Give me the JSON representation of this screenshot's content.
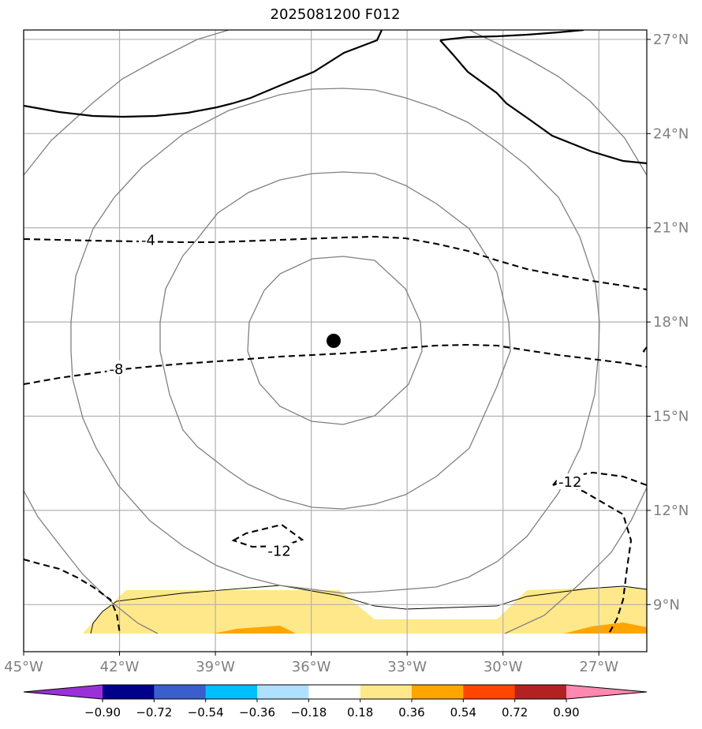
{
  "title": "2025081200 F012",
  "map": {
    "lon_range": [
      -45,
      -25.5
    ],
    "lat_range": [
      7.5,
      27.3
    ],
    "lon_ticks": [
      {
        "value": -45,
        "label": "45°W"
      },
      {
        "value": -42,
        "label": "42°W"
      },
      {
        "value": -39,
        "label": "39°W"
      },
      {
        "value": -36,
        "label": "36°W"
      },
      {
        "value": -33,
        "label": "33°W"
      },
      {
        "value": -30,
        "label": "30°W"
      },
      {
        "value": -27,
        "label": "27°W"
      }
    ],
    "lat_ticks": [
      {
        "value": 27,
        "label": "27°N"
      },
      {
        "value": 24,
        "label": "24°N"
      },
      {
        "value": 21,
        "label": "21°N"
      },
      {
        "value": 18,
        "label": "18°N"
      },
      {
        "value": 15,
        "label": "15°N"
      },
      {
        "value": 12,
        "label": "12°N"
      },
      {
        "value": 9,
        "label": "9°N"
      }
    ],
    "grid_color": "#b0b0b0",
    "storm_center": {
      "lon": -35.3,
      "lat": 17.4
    },
    "contour_labels": [
      {
        "text": "-4",
        "lon": -41.1,
        "lat": 20.6
      },
      {
        "text": "-8",
        "lon": -42.1,
        "lat": 16.5
      },
      {
        "text": "-12",
        "lon": -37.0,
        "lat": 10.7
      },
      {
        "text": "-12",
        "lon": -27.9,
        "lat": 12.9
      }
    ]
  },
  "colorbar": {
    "labels": [
      "−0.90",
      "−0.72",
      "−0.54",
      "−0.36",
      "−0.18",
      "0.18",
      "0.36",
      "0.54",
      "0.72",
      "0.90"
    ],
    "colors": [
      "#9b30d9",
      "#00008b",
      "#3a5fcd",
      "#00bfff",
      "#b0e0ff",
      "#ffffff",
      "#ffe88a",
      "#ffa500",
      "#ff4500",
      "#b22222",
      "#ff88b0"
    ]
  },
  "chart_data": {
    "type": "map-contour",
    "title": "2025081200 F012",
    "levels": [
      -0.9,
      -0.72,
      -0.54,
      -0.36,
      -0.18,
      0.18,
      0.36,
      0.54,
      0.72,
      0.9
    ],
    "dashed_contour_values": [
      -4,
      -8,
      -12,
      -12
    ],
    "storm_center": {
      "lon": -35.3,
      "lat": 17.4
    }
  }
}
